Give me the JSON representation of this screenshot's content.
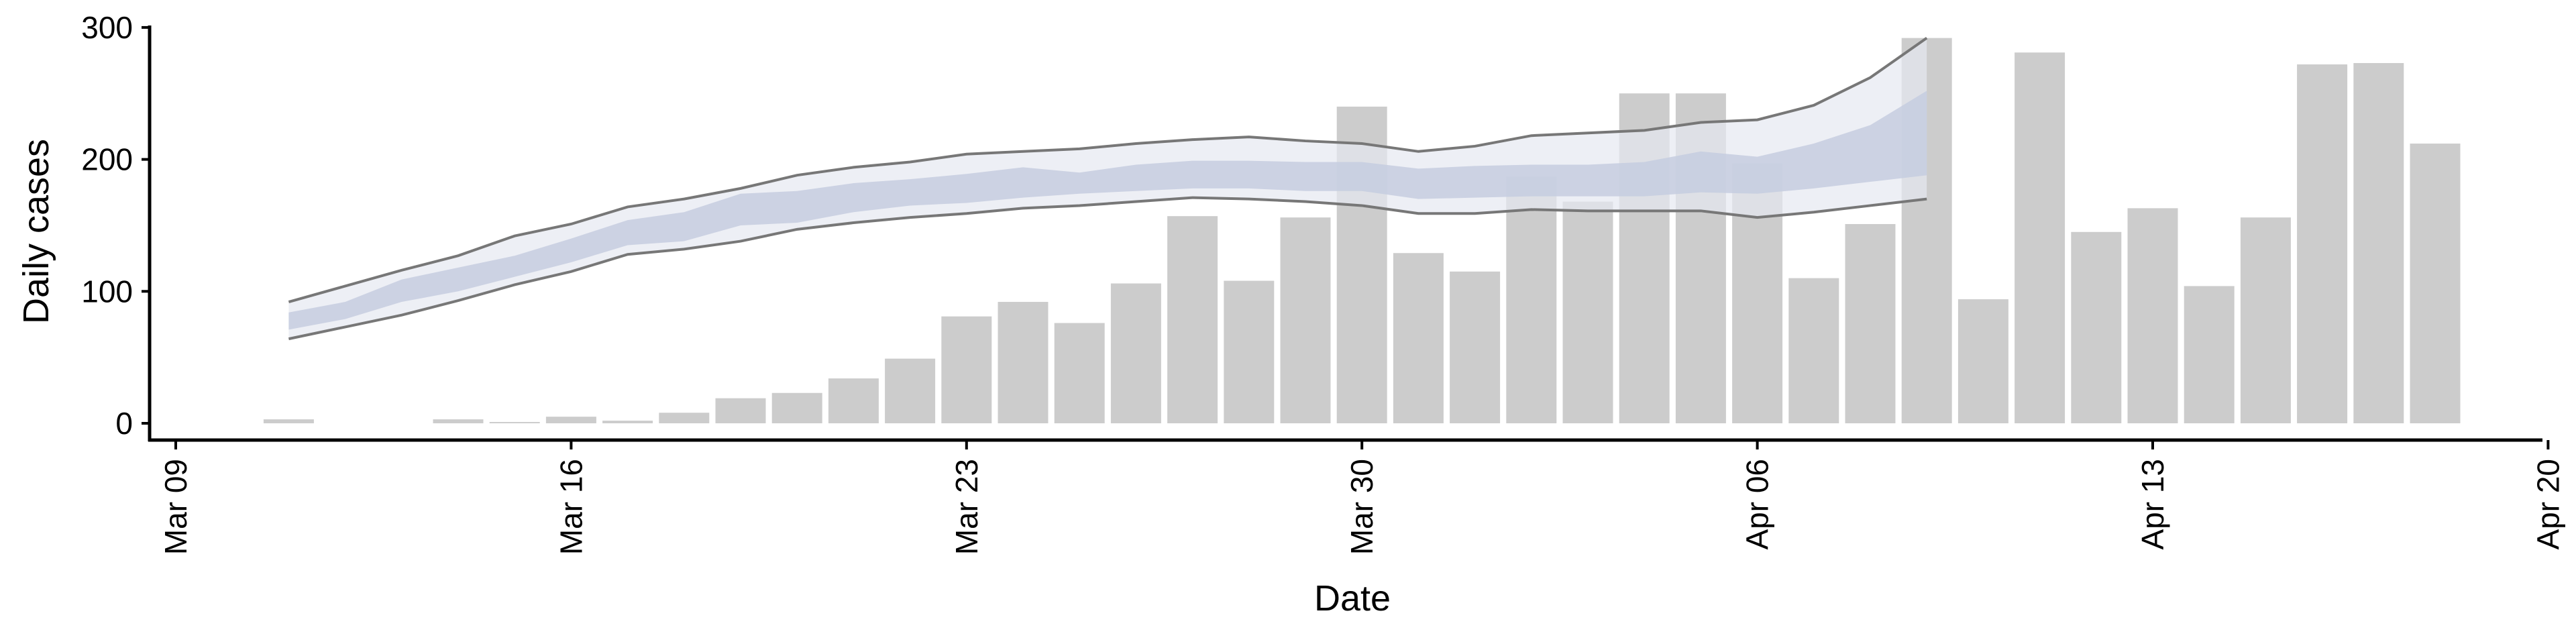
{
  "chart_data": {
    "type": "bar",
    "title": "",
    "xlabel": "Date",
    "ylabel": "Daily cases",
    "ylim": [
      0,
      300
    ],
    "xlim": [
      "2020-03-08",
      "2020-04-20"
    ],
    "grid": false,
    "legend": "none",
    "y_ticks": [
      0,
      100,
      200,
      300
    ],
    "x_ticks": [
      {
        "date": "2020-03-09",
        "label": "Mar 09"
      },
      {
        "date": "2020-03-16",
        "label": "Mar 16"
      },
      {
        "date": "2020-03-23",
        "label": "Mar 23"
      },
      {
        "date": "2020-03-30",
        "label": "Mar 30"
      },
      {
        "date": "2020-04-06",
        "label": "Apr 06"
      },
      {
        "date": "2020-04-13",
        "label": "Apr 13"
      },
      {
        "date": "2020-04-20",
        "label": "Apr 20"
      }
    ],
    "series": [
      {
        "kind": "bar",
        "color": "#cccccc",
        "dates": [
          "2020-03-11",
          "2020-03-12",
          "2020-03-13",
          "2020-03-14",
          "2020-03-15",
          "2020-03-16",
          "2020-03-17",
          "2020-03-18",
          "2020-03-19",
          "2020-03-20",
          "2020-03-21",
          "2020-03-22",
          "2020-03-23",
          "2020-03-24",
          "2020-03-25",
          "2020-03-26",
          "2020-03-27",
          "2020-03-28",
          "2020-03-29",
          "2020-03-30",
          "2020-03-31",
          "2020-04-01",
          "2020-04-02",
          "2020-04-03",
          "2020-04-04",
          "2020-04-05",
          "2020-04-06",
          "2020-04-07",
          "2020-04-08",
          "2020-04-09",
          "2020-04-10",
          "2020-04-11",
          "2020-04-12",
          "2020-04-13",
          "2020-04-14",
          "2020-04-15",
          "2020-04-16",
          "2020-04-17",
          "2020-04-18"
        ],
        "values": [
          3,
          0,
          0,
          3,
          1,
          5,
          2,
          8,
          19,
          23,
          34,
          49,
          81,
          92,
          76,
          106,
          157,
          108,
          156,
          240,
          129,
          115,
          187,
          168,
          250,
          250,
          197,
          110,
          151,
          292,
          94,
          281,
          145,
          163,
          104,
          156,
          272,
          273,
          212
        ]
      },
      {
        "kind": "forecast_band",
        "fill_outer": "#e6e8f1",
        "fill_inner": "#c6ccdf",
        "line_color": "#777777",
        "dates": [
          "2020-03-11",
          "2020-03-12",
          "2020-03-13",
          "2020-03-14",
          "2020-03-15",
          "2020-03-16",
          "2020-03-17",
          "2020-03-18",
          "2020-03-19",
          "2020-03-20",
          "2020-03-21",
          "2020-03-22",
          "2020-03-23",
          "2020-03-24",
          "2020-03-25",
          "2020-03-26",
          "2020-03-27",
          "2020-03-28",
          "2020-03-29",
          "2020-03-30",
          "2020-03-31",
          "2020-04-01",
          "2020-04-02",
          "2020-04-03",
          "2020-04-04",
          "2020-04-05",
          "2020-04-06",
          "2020-04-07",
          "2020-04-08",
          "2020-04-09"
        ],
        "lower": [
          64,
          73,
          82,
          93,
          105,
          115,
          128,
          132,
          138,
          147,
          152,
          156,
          159,
          163,
          165,
          168,
          171,
          170,
          168,
          165,
          159,
          159,
          162,
          161,
          161,
          161,
          156,
          160,
          165,
          170
        ],
        "upper": [
          92,
          104,
          116,
          127,
          142,
          151,
          164,
          170,
          178,
          188,
          194,
          198,
          204,
          206,
          208,
          212,
          215,
          217,
          214,
          212,
          206,
          210,
          218,
          220,
          222,
          228,
          230,
          241,
          262,
          292
        ],
        "inner_lower": [
          71,
          79,
          92,
          100,
          111,
          122,
          135,
          138,
          150,
          152,
          160,
          165,
          167,
          171,
          174,
          176,
          178,
          178,
          176,
          176,
          170,
          171,
          172,
          172,
          172,
          175,
          174,
          178,
          183,
          188
        ],
        "inner_upper": [
          84,
          92,
          109,
          118,
          127,
          140,
          154,
          160,
          174,
          176,
          182,
          185,
          189,
          194,
          190,
          196,
          199,
          199,
          198,
          198,
          193,
          195,
          196,
          196,
          198,
          206,
          202,
          212,
          226,
          252
        ]
      }
    ]
  }
}
